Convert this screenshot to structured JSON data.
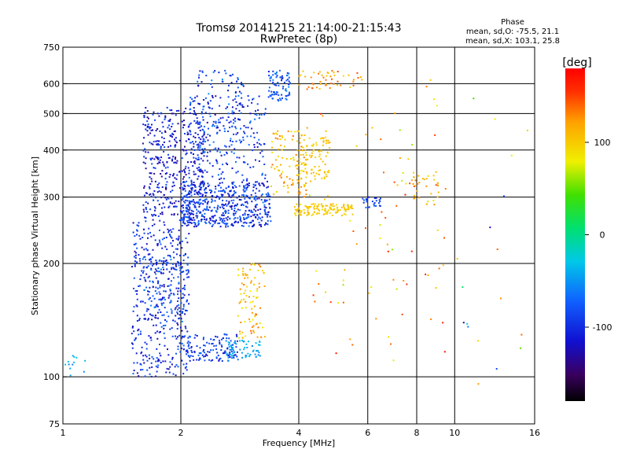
{
  "chart_data": {
    "type": "scatter",
    "title": "Tromsø 20141215 21:14:00-21:15:43",
    "subtitle": "RwPretec (8p)",
    "xlabel": "Frequency [MHz]",
    "ylabel": "Stationary phase Virtual Height [km]",
    "x_scale": "log",
    "y_scale": "log",
    "xlim": [
      1,
      16
    ],
    "ylim": [
      75,
      750
    ],
    "x_ticks": [
      1,
      2,
      4,
      6,
      8,
      10,
      16
    ],
    "x_tick_labels": [
      "1",
      "2",
      "4",
      "6",
      "8",
      "10",
      "16"
    ],
    "x_grid": [
      2,
      4,
      6,
      8,
      10
    ],
    "y_ticks": [
      75,
      100,
      200,
      300,
      400,
      500,
      600,
      750
    ],
    "y_tick_labels": [
      "75",
      "100",
      "200",
      "300",
      "400",
      "500",
      "600",
      "750"
    ],
    "y_grid": [
      100,
      200,
      300,
      400,
      500,
      600
    ],
    "grid": true,
    "colorbar": {
      "label": "[deg]",
      "ticks": [
        100,
        0,
        -100
      ],
      "tick_labels": [
        "100",
        "0",
        "-100"
      ],
      "range": [
        -180,
        180
      ],
      "colormap": "rainbow"
    },
    "stats": {
      "heading": "Phase",
      "line_o": "mean, sd,O: -75.5, 21.1",
      "line_x": "mean, sd,X: 103.1, 25.8"
    },
    "clusters": [
      {
        "x": [
          1.5,
          2.1
        ],
        "y": [
          100,
          260
        ],
        "phase": [
          -130,
          -70
        ],
        "n": 420
      },
      {
        "x": [
          1.6,
          2.3
        ],
        "y": [
          260,
          520
        ],
        "phase": [
          -140,
          -80
        ],
        "n": 420
      },
      {
        "x": [
          2.0,
          3.4
        ],
        "y": [
          250,
          330
        ],
        "phase": [
          -130,
          -60
        ],
        "n": 520
      },
      {
        "x": [
          2.1,
          3.3
        ],
        "y": [
          330,
          560
        ],
        "phase": [
          -120,
          -60
        ],
        "n": 230
      },
      {
        "x": [
          2.0,
          2.8
        ],
        "y": [
          110,
          130
        ],
        "phase": [
          -120,
          -60
        ],
        "n": 140
      },
      {
        "x": [
          2.6,
          3.2
        ],
        "y": [
          112,
          125
        ],
        "phase": [
          -60,
          -30
        ],
        "n": 60
      },
      {
        "x": [
          3.35,
          3.8
        ],
        "y": [
          540,
          650
        ],
        "phase": [
          -110,
          -50
        ],
        "n": 80
      },
      {
        "x": [
          3.4,
          4.2
        ],
        "y": [
          300,
          450
        ],
        "phase": [
          80,
          140
        ],
        "n": 100
      },
      {
        "x": [
          3.9,
          4.8
        ],
        "y": [
          330,
          450
        ],
        "phase": [
          90,
          115
        ],
        "n": 90
      },
      {
        "x": [
          3.9,
          5.5
        ],
        "y": [
          268,
          288
        ],
        "phase": [
          90,
          110
        ],
        "n": 130
      },
      {
        "x": [
          2.8,
          3.3
        ],
        "y": [
          125,
          200
        ],
        "phase": [
          70,
          140
        ],
        "n": 90
      },
      {
        "x": [
          4.0,
          5.8
        ],
        "y": [
          580,
          650
        ],
        "phase": [
          90,
          150
        ],
        "n": 50
      },
      {
        "x": [
          1.6,
          2.1
        ],
        "y": [
          140,
          210
        ],
        "phase": [
          -130,
          -50
        ],
        "n": 100
      },
      {
        "x": [
          4.2,
          9.5
        ],
        "y": [
          110,
          650
        ],
        "phase": [
          60,
          170
        ],
        "n": 80
      },
      {
        "x": [
          2.2,
          2.9
        ],
        "y": [
          450,
          650
        ],
        "phase": [
          -130,
          -50
        ],
        "n": 90
      },
      {
        "x": [
          1.0,
          1.15
        ],
        "y": [
          100,
          115
        ],
        "phase": [
          -60,
          -30
        ],
        "n": 12
      },
      {
        "x": [
          5.8,
          6.5
        ],
        "y": [
          280,
          300
        ],
        "phase": [
          -110,
          -70
        ],
        "n": 25
      },
      {
        "x": [
          7.5,
          9.2
        ],
        "y": [
          280,
          350
        ],
        "phase": [
          70,
          150
        ],
        "n": 35
      },
      {
        "x": [
          10.0,
          15.5
        ],
        "y": [
          95,
          600
        ],
        "phase": [
          -130,
          140
        ],
        "n": 18
      }
    ]
  }
}
